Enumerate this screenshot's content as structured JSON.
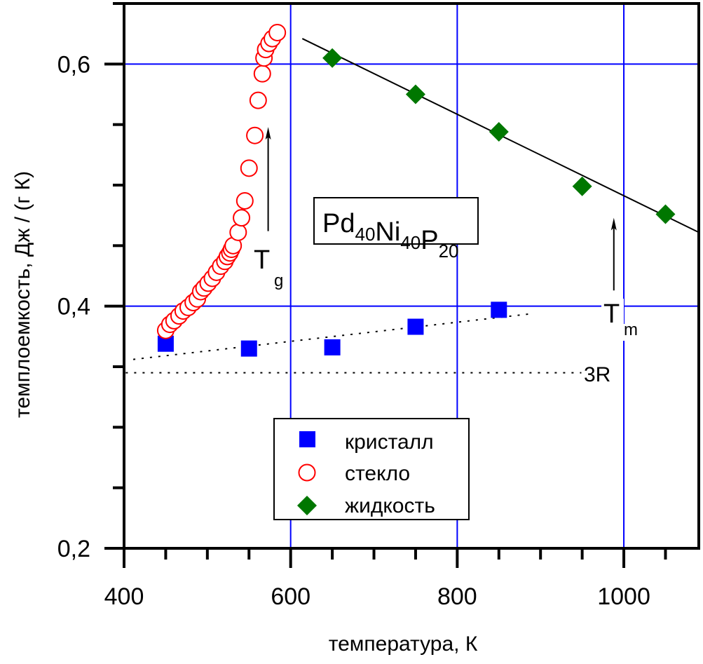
{
  "chart_data": {
    "type": "scatter",
    "title": "",
    "xlabel": "температура, К",
    "ylabel": "темплоемкость, Дж / (г К)",
    "xlim": [
      400,
      1090
    ],
    "ylim": [
      0.2,
      0.65
    ],
    "x_ticks": [
      400,
      600,
      800,
      1000
    ],
    "x_tick_labels": [
      "400",
      "600",
      "800",
      "1000"
    ],
    "x_minor_step": 50,
    "y_ticks": [
      0.2,
      0.4,
      0.6
    ],
    "y_tick_labels": [
      "0,2",
      "0,4",
      "0,6"
    ],
    "y_minor_step": 0.05,
    "grid": true,
    "grid_color": "#0000ff",
    "grid_x": [
      600,
      800,
      1000
    ],
    "grid_y": [
      0.4,
      0.6
    ],
    "legend_position": "bottom-center",
    "series": [
      {
        "name": "кристалл",
        "marker": "square",
        "color": "#0000ff",
        "filled": true,
        "x": [
          450,
          550,
          650,
          750,
          850
        ],
        "y": [
          0.369,
          0.365,
          0.366,
          0.383,
          0.397
        ]
      },
      {
        "name": "стекло",
        "marker": "circle",
        "color": "#ff0000",
        "filled": false,
        "x": [
          450,
          455,
          460,
          466,
          471,
          477,
          483,
          488,
          492,
          496,
          501,
          506,
          511,
          516,
          521,
          524,
          527,
          529,
          531,
          537,
          541,
          545,
          550,
          557,
          561,
          566,
          568,
          570,
          574,
          578,
          584
        ],
        "y": [
          0.38,
          0.385,
          0.388,
          0.392,
          0.396,
          0.399,
          0.403,
          0.406,
          0.412,
          0.415,
          0.419,
          0.423,
          0.428,
          0.433,
          0.437,
          0.441,
          0.444,
          0.447,
          0.45,
          0.461,
          0.473,
          0.487,
          0.514,
          0.541,
          0.57,
          0.592,
          0.605,
          0.612,
          0.617,
          0.621,
          0.626
        ]
      },
      {
        "name": "жидкость",
        "marker": "diamond",
        "color": "#007700",
        "filled": true,
        "x": [
          650,
          750,
          850,
          950,
          1050
        ],
        "y": [
          0.605,
          0.575,
          0.544,
          0.499,
          0.476
        ]
      }
    ],
    "lines": [
      {
        "name": "liquid-fit",
        "style": "solid",
        "x": [
          614,
          1090
        ],
        "y": [
          0.621,
          0.461
        ]
      },
      {
        "name": "crystal-fit",
        "style": "dotted",
        "x": [
          411,
          892
        ],
        "y": [
          0.356,
          0.394
        ]
      },
      {
        "name": "3R-level",
        "style": "dotted",
        "x": [
          402,
          949
        ],
        "y": [
          0.345,
          0.345
        ]
      }
    ],
    "annotations": {
      "composition": {
        "parts": [
          [
            "Pd",
            "40"
          ],
          [
            "Ni",
            "40"
          ],
          [
            "P",
            "20"
          ]
        ],
        "x": 595,
        "y": 0.48
      },
      "tg": {
        "main": "T",
        "sub": "g",
        "arrow_x": 573,
        "arrow_from": 0.462,
        "arrow_to": 0.548
      },
      "tm": {
        "main": "T",
        "sub": "m",
        "arrow_x": 988,
        "arrow_from": 0.413,
        "arrow_to": 0.473
      },
      "r3": {
        "label": "3R",
        "x": 970,
        "y": 0.345
      }
    }
  }
}
